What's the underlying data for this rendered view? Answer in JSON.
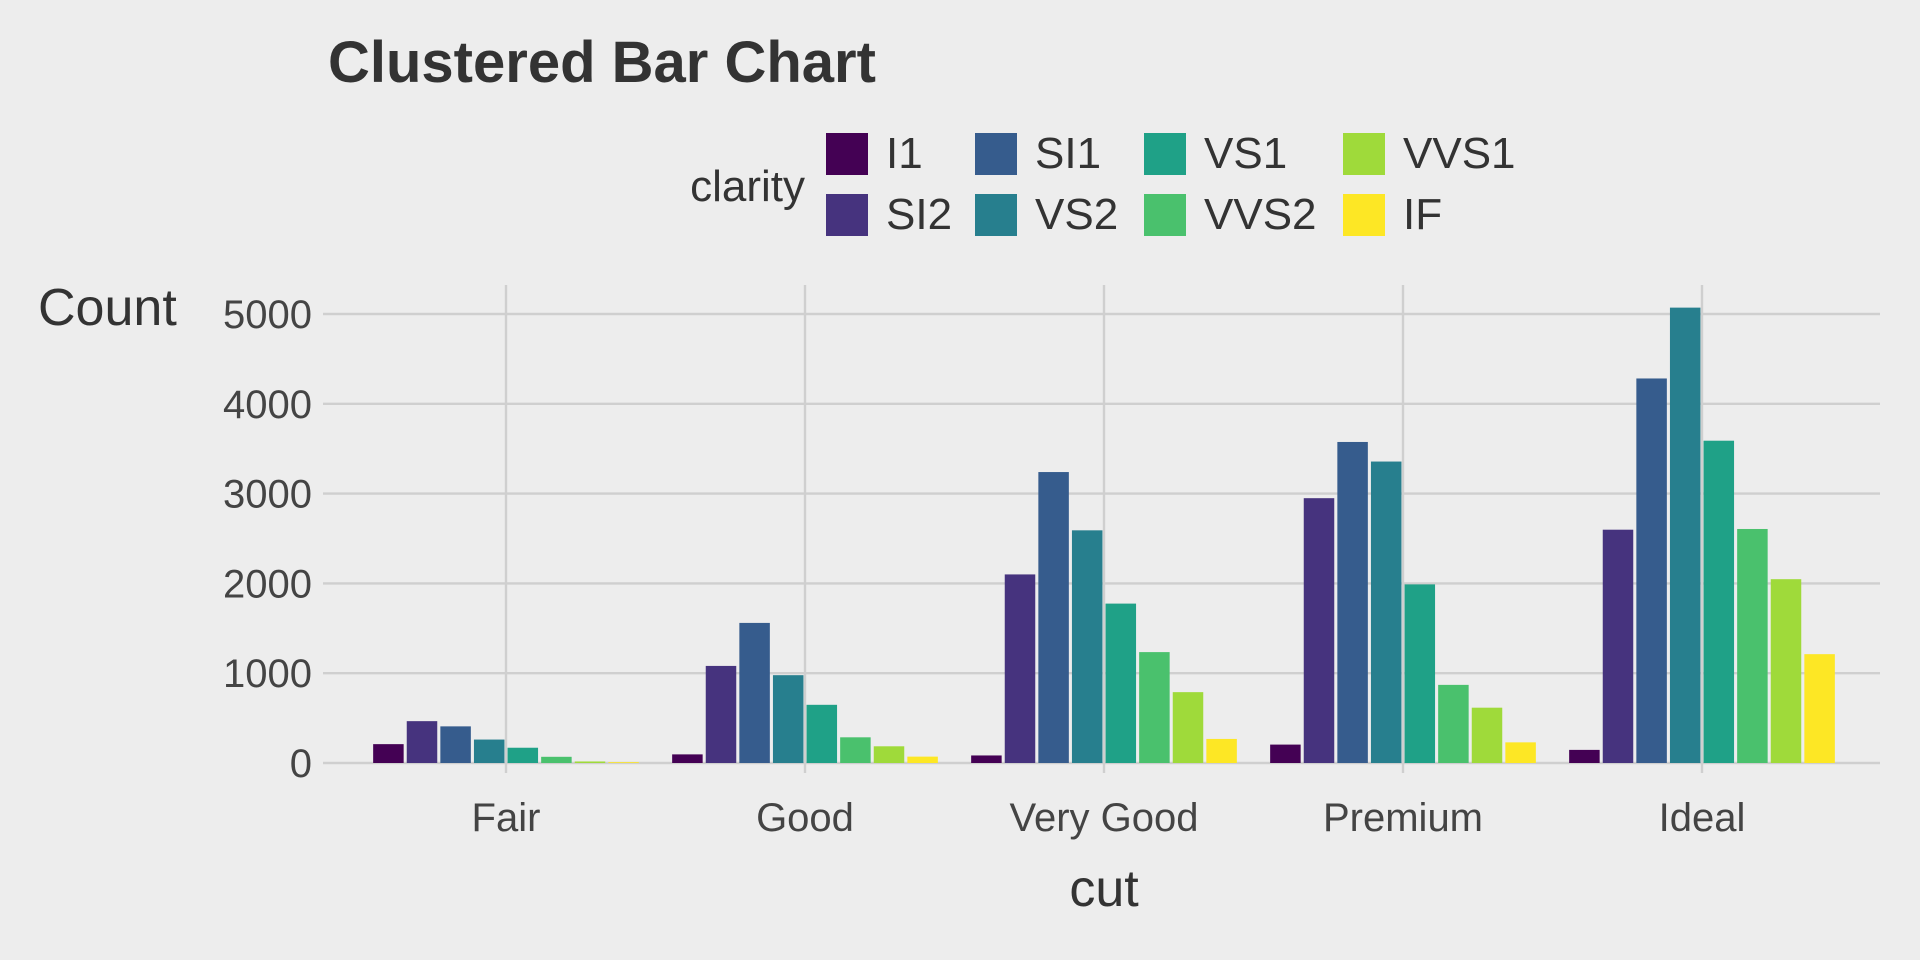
{
  "chart_data": {
    "type": "bar",
    "title": "Clustered Bar Chart",
    "xlabel": "cut",
    "ylabel": "Count",
    "ylim": [
      0,
      5300
    ],
    "yticks": [
      0,
      1000,
      2000,
      3000,
      4000,
      5000
    ],
    "categories": [
      "Fair",
      "Good",
      "Very Good",
      "Premium",
      "Ideal"
    ],
    "legend": {
      "title": "clarity",
      "position": "top"
    },
    "series": [
      {
        "name": "I1",
        "color": "#440154",
        "values": [
          210,
          96,
          84,
          205,
          146
        ]
      },
      {
        "name": "SI2",
        "color": "#46337e",
        "values": [
          466,
          1081,
          2100,
          2949,
          2598
        ]
      },
      {
        "name": "SI1",
        "color": "#365c8d",
        "values": [
          408,
          1560,
          3240,
          3575,
          4282
        ]
      },
      {
        "name": "VS2",
        "color": "#277f8e",
        "values": [
          261,
          978,
          2591,
          3357,
          5071
        ]
      },
      {
        "name": "VS1",
        "color": "#1fa187",
        "values": [
          170,
          648,
          1775,
          1989,
          3589
        ]
      },
      {
        "name": "VVS2",
        "color": "#4ac16d",
        "values": [
          69,
          286,
          1235,
          870,
          2606
        ]
      },
      {
        "name": "VVS1",
        "color": "#9fda3a",
        "values": [
          17,
          186,
          789,
          616,
          2047
        ]
      },
      {
        "name": "IF",
        "color": "#fde725",
        "values": [
          9,
          71,
          268,
          230,
          1212
        ]
      }
    ]
  }
}
